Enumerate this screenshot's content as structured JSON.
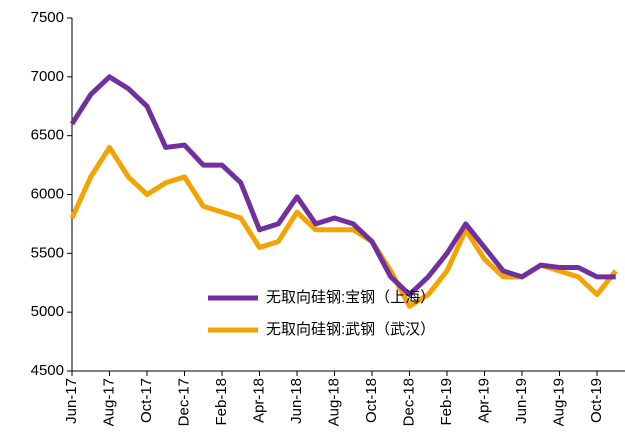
{
  "chart_data": {
    "type": "line",
    "categories": [
      "Jun-17",
      null,
      "Aug-17",
      null,
      "Oct-17",
      null,
      "Dec-17",
      null,
      "Feb-18",
      null,
      "Apr-18",
      null,
      "Jun-18",
      null,
      "Aug-18",
      null,
      "Oct-18",
      null,
      "Dec-18",
      null,
      "Feb-19",
      null,
      "Apr-19",
      null,
      "Jun-19",
      null,
      "Aug-19",
      null,
      "Oct-19",
      null
    ],
    "series": [
      {
        "name": "无取向硅钢:宝钢（上海）",
        "color": "#7030a0",
        "values": [
          6600,
          6850,
          7000,
          6900,
          6750,
          6400,
          6420,
          6250,
          6250,
          6100,
          5700,
          5750,
          5980,
          5750,
          5800,
          5750,
          5600,
          5300,
          5150,
          5300,
          5500,
          5750,
          5550,
          5350,
          5300,
          5400,
          5380,
          5380,
          5300,
          5300
        ]
      },
      {
        "name": "无取向硅钢:武钢（武汉）",
        "color": "#f5a300",
        "values": [
          5800,
          6150,
          6400,
          6150,
          6000,
          6100,
          6150,
          5900,
          5850,
          5800,
          5550,
          5600,
          5850,
          5700,
          5700,
          5700,
          5600,
          5350,
          5050,
          5150,
          5350,
          5700,
          5450,
          5300,
          5300,
          5400,
          5350,
          5300,
          5150,
          5350
        ]
      }
    ],
    "ylim": [
      4500,
      7500
    ],
    "yticks": [
      4500,
      5000,
      5500,
      6000,
      6500,
      7000,
      7500
    ],
    "grid": false
  }
}
